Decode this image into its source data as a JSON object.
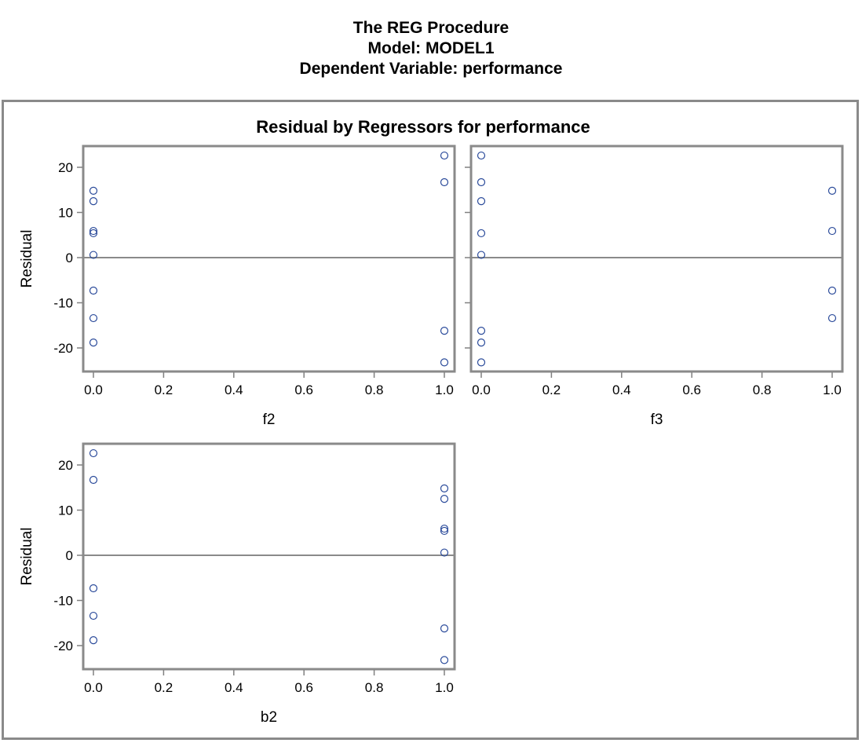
{
  "header": {
    "line1": "The REG Procedure",
    "line2": "Model: MODEL1",
    "line3": "Dependent Variable: performance"
  },
  "colors": {
    "marker": "#2a4a9a",
    "axis": "#808080",
    "reference_line": "#8a8a8a",
    "frame": "#8a8a8a"
  },
  "chart_data": {
    "type": "scatter",
    "title": "Residual by Regressors for performance",
    "ylabel": "Residual",
    "xlim": [
      0,
      1
    ],
    "ylim": [
      -26,
      25
    ],
    "xticks": [
      "0.0",
      "0.2",
      "0.4",
      "0.6",
      "0.8",
      "1.0"
    ],
    "yticks": [
      "20",
      "10",
      "0",
      "-10",
      "-20"
    ],
    "reference_y": 0,
    "grid": false,
    "panels": [
      {
        "xlabel": "f2",
        "show_ylabel": true,
        "points": [
          {
            "x": 0,
            "y": 14.8
          },
          {
            "x": 0,
            "y": 12.5
          },
          {
            "x": 0,
            "y": 5.9
          },
          {
            "x": 0,
            "y": 5.4
          },
          {
            "x": 0,
            "y": 0.6
          },
          {
            "x": 0,
            "y": -7.3
          },
          {
            "x": 0,
            "y": -13.4
          },
          {
            "x": 0,
            "y": -18.8
          },
          {
            "x": 1,
            "y": 22.6
          },
          {
            "x": 1,
            "y": 16.7
          },
          {
            "x": 1,
            "y": -16.2
          },
          {
            "x": 1,
            "y": -23.2
          }
        ]
      },
      {
        "xlabel": "f3",
        "show_ylabel": false,
        "points": [
          {
            "x": 0,
            "y": 22.6
          },
          {
            "x": 0,
            "y": 16.7
          },
          {
            "x": 0,
            "y": 12.5
          },
          {
            "x": 0,
            "y": 5.4
          },
          {
            "x": 0,
            "y": 0.6
          },
          {
            "x": 0,
            "y": -16.2
          },
          {
            "x": 0,
            "y": -18.8
          },
          {
            "x": 0,
            "y": -23.2
          },
          {
            "x": 1,
            "y": 14.8
          },
          {
            "x": 1,
            "y": 5.9
          },
          {
            "x": 1,
            "y": -7.3
          },
          {
            "x": 1,
            "y": -13.4
          }
        ]
      },
      {
        "xlabel": "b2",
        "show_ylabel": true,
        "points": [
          {
            "x": 0,
            "y": 22.6
          },
          {
            "x": 0,
            "y": 16.7
          },
          {
            "x": 0,
            "y": -7.3
          },
          {
            "x": 0,
            "y": -13.4
          },
          {
            "x": 0,
            "y": -18.8
          },
          {
            "x": 1,
            "y": 14.8
          },
          {
            "x": 1,
            "y": 12.5
          },
          {
            "x": 1,
            "y": 5.9
          },
          {
            "x": 1,
            "y": 5.4
          },
          {
            "x": 1,
            "y": 0.6
          },
          {
            "x": 1,
            "y": -16.2
          },
          {
            "x": 1,
            "y": -23.2
          }
        ]
      }
    ]
  }
}
